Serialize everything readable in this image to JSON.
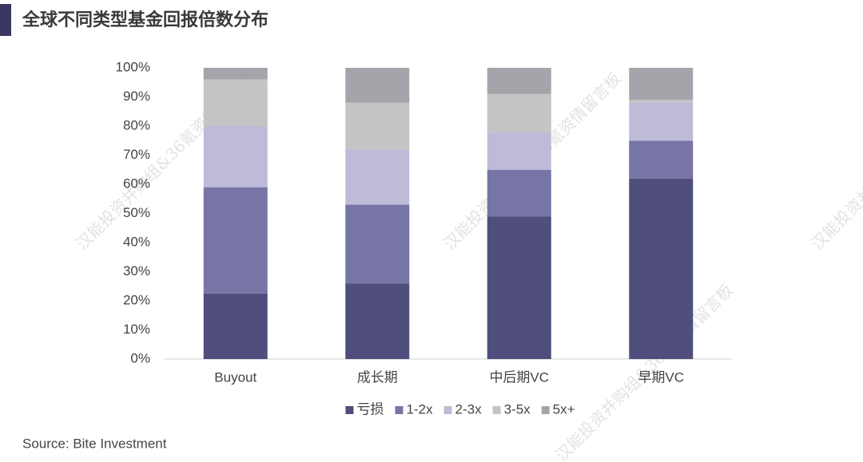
{
  "chart_data": {
    "type": "stacked_bar",
    "title": "全球不同类型基金回报倍数分布",
    "source": "Source: Bite Investment",
    "watermark": "汉能投资并购组&36氪资情留言板",
    "categories": [
      "Buyout",
      "成长期",
      "中后期VC",
      "早期VC"
    ],
    "series": [
      {
        "name": "亏损",
        "color": "#4f4e7c",
        "values": [
          22.5,
          26,
          49,
          62
        ]
      },
      {
        "name": "1-2x",
        "color": "#7775a6",
        "values": [
          36.5,
          27,
          16,
          13
        ]
      },
      {
        "name": "2-3x",
        "color": "#bdbbd8",
        "values": [
          21,
          19,
          13,
          13
        ]
      },
      {
        "name": "3-5x",
        "color": "#c4c4c4",
        "values": [
          16,
          16,
          13,
          1
        ]
      },
      {
        "name": "5x+",
        "color": "#a5a4aa",
        "values": [
          4,
          12,
          9,
          11
        ]
      }
    ],
    "ylim": [
      0,
      100
    ],
    "yticks": [
      {
        "value": 0,
        "label": "0%"
      },
      {
        "value": 10,
        "label": "10%"
      },
      {
        "value": 20,
        "label": "20%"
      },
      {
        "value": 30,
        "label": "30%"
      },
      {
        "value": 40,
        "label": "40%"
      },
      {
        "value": 50,
        "label": "50%"
      },
      {
        "value": 60,
        "label": "60%"
      },
      {
        "value": 70,
        "label": "70%"
      },
      {
        "value": 80,
        "label": "80%"
      },
      {
        "value": 90,
        "label": "90%"
      },
      {
        "value": 100,
        "label": "100%"
      }
    ],
    "legend": "bottom"
  }
}
